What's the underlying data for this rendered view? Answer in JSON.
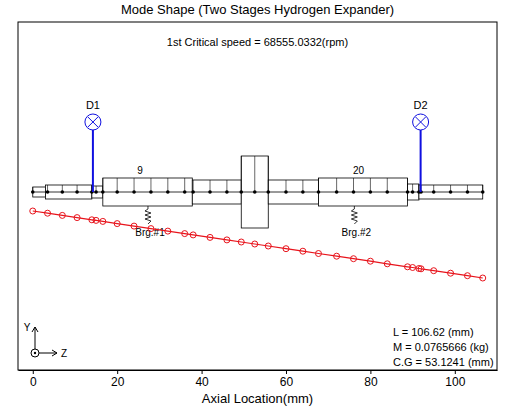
{
  "chart_data": {
    "type": "line",
    "title": "Mode Shape (Two Stages Hydrogen Expander)",
    "subtitle": "1st Critical speed = 68555.0332(rpm)",
    "x_label": "Axial Location(mm)",
    "xlim": [
      -3.5,
      110
    ],
    "xticks": [
      0,
      20,
      40,
      60,
      80,
      100
    ],
    "ylim": [
      -1.78,
      1.7
    ],
    "tick_labels": "x",
    "series": [
      {
        "color": "#e8141c",
        "marker": "circle",
        "line_style": "solid",
        "x": [
          0,
          3.5,
          7,
          10.5,
          14,
          15,
          16.6,
          20,
          24,
          28,
          32,
          36,
          38,
          42,
          46,
          49.4,
          52.6,
          55.8,
          60,
          64,
          67.7,
          72,
          76,
          80,
          84,
          88.8,
          90,
          91.5,
          92,
          95,
          99,
          103,
          106.62
        ],
        "values": [
          -0.19,
          -0.212,
          -0.234,
          -0.256,
          -0.278,
          -0.284,
          -0.294,
          -0.316,
          -0.341,
          -0.366,
          -0.391,
          -0.416,
          -0.429,
          -0.454,
          -0.479,
          -0.5,
          -0.52,
          -0.54,
          -0.567,
          -0.592,
          -0.615,
          -0.642,
          -0.667,
          -0.692,
          -0.718,
          -0.748,
          -0.755,
          -0.765,
          -0.768,
          -0.787,
          -0.812,
          -0.837,
          -0.86
        ]
      }
    ],
    "rotor_sections": [
      {
        "z0": 0,
        "z1": 3,
        "radius": 0.05
      },
      {
        "z0": 3,
        "z1": 14,
        "radius": 0.07
      },
      {
        "z0": 14,
        "z1": 16.6,
        "radius": 0.06
      },
      {
        "z0": 16.6,
        "z1": 37.8,
        "radius": 0.14
      },
      {
        "z0": 37.8,
        "z1": 49.4,
        "radius": 0.12
      },
      {
        "z0": 49.4,
        "z1": 55.8,
        "radius": 0.36
      },
      {
        "z0": 55.8,
        "z1": 67.7,
        "radius": 0.12
      },
      {
        "z0": 67.7,
        "z1": 88.8,
        "radius": 0.14
      },
      {
        "z0": 88.8,
        "z1": 91.5,
        "radius": 0.08
      },
      {
        "z0": 91.5,
        "z1": 106.62,
        "radius": 0.07
      }
    ],
    "element_labels": [
      {
        "z": 25.4,
        "label": "9"
      },
      {
        "z": 77.2,
        "label": "20"
      }
    ],
    "bearings": [
      {
        "z": 27.3,
        "label": "Brg.#1"
      },
      {
        "z": 76.2,
        "label": "Brg.#2"
      }
    ],
    "probes": [
      {
        "z": 14.25,
        "label": "D1"
      },
      {
        "z": 91.9,
        "label": "D2"
      }
    ],
    "annotations": [
      "L = 106.62 (mm)",
      "M = 0.0765666 (kg)",
      "C.G = 53.1241 (mm)"
    ],
    "triad": {
      "y": "Y",
      "z": "Z"
    }
  }
}
